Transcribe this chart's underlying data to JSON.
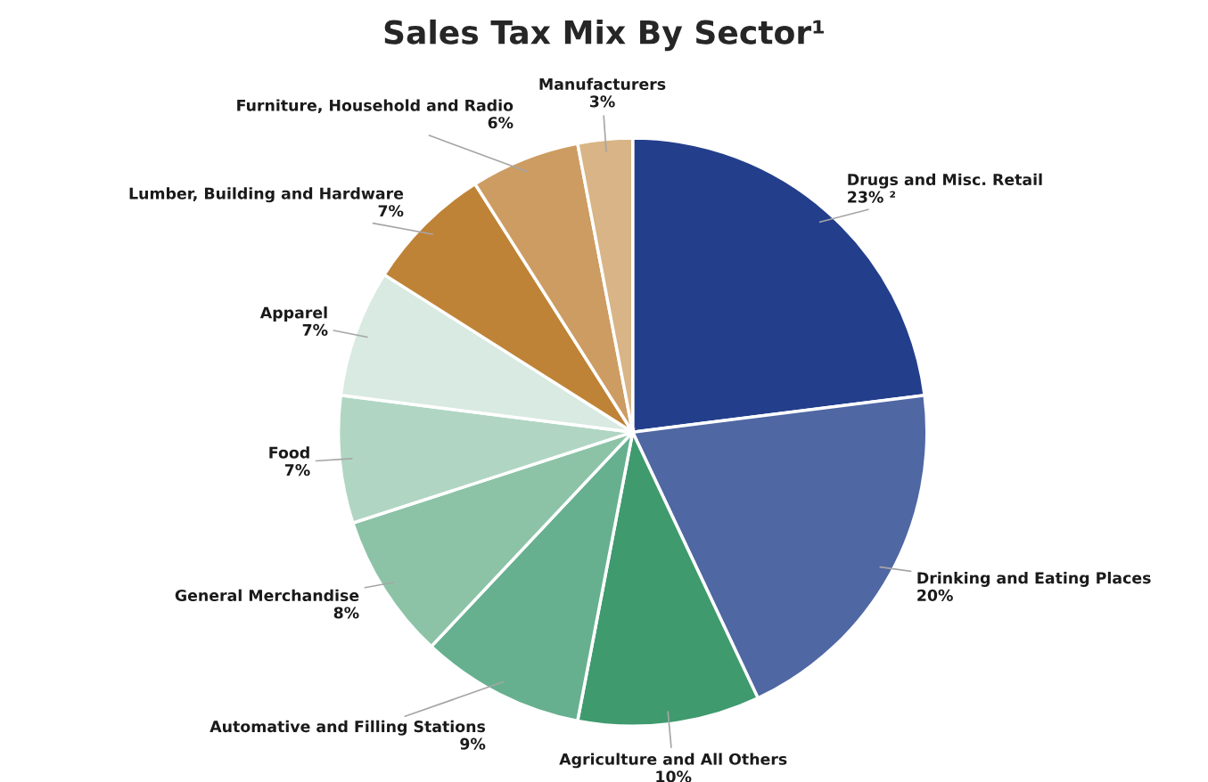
{
  "chart_data": {
    "type": "pie",
    "title": "Sales Tax Mix By Sector¹",
    "categories": [
      "Drugs and Misc. Retail",
      "Drinking and Eating Places",
      "Agriculture and All Others",
      "Automative and Filling Stations",
      "General Merchandise",
      "Food",
      "Apparel",
      "Lumber, Building and Hardware",
      "Furniture, Household and Radio",
      "Manufacturers"
    ],
    "values": [
      23,
      20,
      10,
      9,
      8,
      7,
      7,
      7,
      6,
      3
    ],
    "value_labels": [
      "23% ²",
      "20%",
      "10%",
      "9%",
      "8%",
      "7%",
      "7%",
      "7%",
      "6%",
      "3%"
    ],
    "colors": [
      "#233f8c",
      "#4f67a3",
      "#3f9a6e",
      "#66b08f",
      "#8cc3a7",
      "#b0d6c3",
      "#d8eae1",
      "#bf8337",
      "#cd9c62",
      "#d8b486"
    ],
    "legend": false
  }
}
